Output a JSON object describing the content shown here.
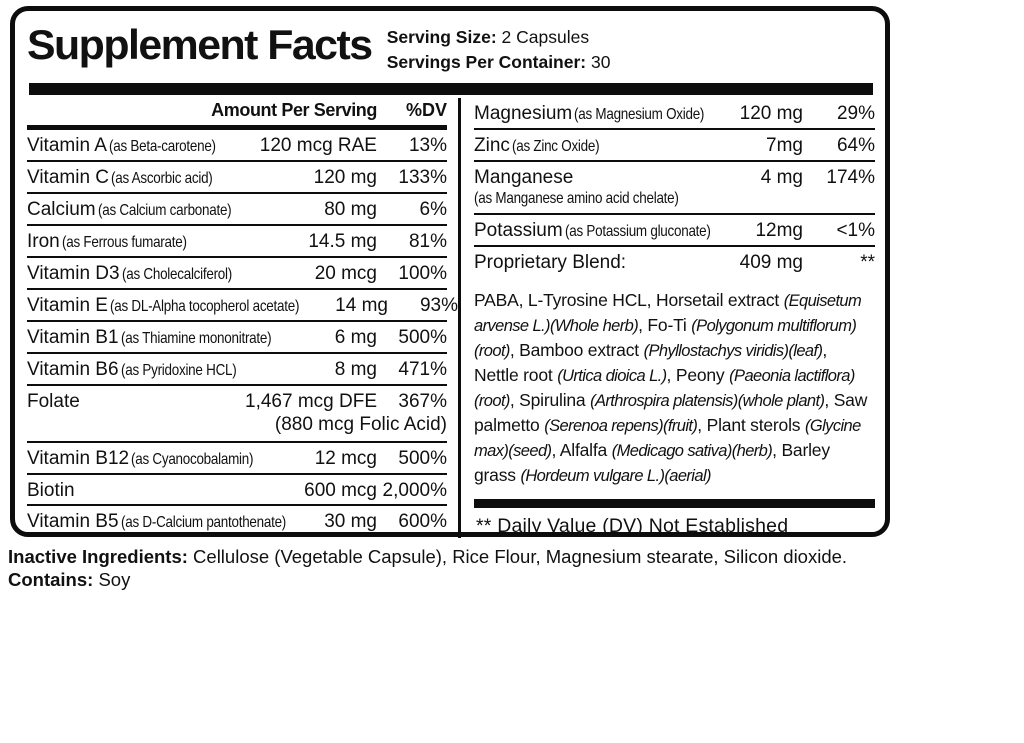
{
  "header": {
    "title": "Supplement Facts",
    "serving_size_label": "Serving Size:",
    "serving_size_value": " 2 Capsules",
    "servings_label": "Servings Per Container:",
    "servings_value": " 30"
  },
  "left_table": {
    "col_amount": "Amount Per Serving",
    "col_dv": "%DV",
    "rows": [
      {
        "name": "Vitamin A",
        "detail": "(as Beta-carotene)",
        "amount": "120 mcg RAE",
        "dv": "13%"
      },
      {
        "name": "Vitamin C",
        "detail": "(as Ascorbic acid)",
        "amount": "120 mg",
        "dv": "133%"
      },
      {
        "name": "Calcium",
        "detail": "(as Calcium carbonate)",
        "amount": "80 mg",
        "dv": "6%"
      },
      {
        "name": "Iron",
        "detail": "(as Ferrous fumarate)",
        "amount": "14.5 mg",
        "dv": "81%"
      },
      {
        "name": "Vitamin D3",
        "detail": "(as Cholecalciferol)",
        "amount": "20 mcg",
        "dv": "100%"
      },
      {
        "name": "Vitamin E",
        "detail": "(as DL-Alpha tocopherol acetate)",
        "amount": "14 mg",
        "dv": "93%"
      },
      {
        "name": "Vitamin B1",
        "detail": "(as Thiamine mononitrate)",
        "amount": "6 mg",
        "dv": "500%"
      },
      {
        "name": "Vitamin B6",
        "detail": "(as Pyridoxine HCL)",
        "amount": "8 mg",
        "dv": "471%"
      },
      {
        "name": "Folate",
        "detail": "",
        "amount": "1,467 mcg DFE",
        "dv": "367%",
        "note": "(880 mcg Folic Acid)"
      },
      {
        "name": "Vitamin B12",
        "detail": "(as Cyanocobalamin)",
        "amount": "12 mcg",
        "dv": "500%"
      },
      {
        "name": "Biotin",
        "detail": "",
        "amount": "600 mcg",
        "dv": "2,000%"
      },
      {
        "name": "Vitamin B5",
        "detail": "(as D-Calcium pantothenate)",
        "amount": "30 mg",
        "dv": "600%"
      }
    ]
  },
  "right_table": {
    "rows": [
      {
        "name": "Magnesium",
        "detail": "(as Magnesium Oxide)",
        "amount": "120 mg",
        "dv": "29%"
      },
      {
        "name": "Zinc",
        "detail": "(as Zinc Oxide)",
        "amount": "7mg",
        "dv": "64%"
      },
      {
        "name": "Manganese",
        "detail": "",
        "detail2": "(as Manganese amino acid chelate)",
        "amount": "4 mg",
        "dv": "174%"
      },
      {
        "name": "Potassium",
        "detail": "(as Potassium gluconate)",
        "amount": "12mg",
        "dv": "<1%"
      },
      {
        "name": "Proprietary Blend:",
        "detail": "",
        "amount": "409 mg",
        "dv": "**"
      }
    ],
    "blend_segments": [
      {
        "text": "PABA, L-Tyrosine HCL, Horsetail extract ",
        "italic": false
      },
      {
        "text": "(Equisetum arvense L.)(Whole herb)",
        "italic": true
      },
      {
        "text": ", Fo-Ti ",
        "italic": false
      },
      {
        "text": "(Polygonum multiflorum)(root)",
        "italic": true
      },
      {
        "text": ", Bamboo extract ",
        "italic": false
      },
      {
        "text": "(Phyllostachys viridis)(leaf)",
        "italic": true
      },
      {
        "text": ", Nettle root ",
        "italic": false
      },
      {
        "text": "(Urtica dioica L.)",
        "italic": true
      },
      {
        "text": ",  Peony ",
        "italic": false
      },
      {
        "text": "(Paeonia lactiflora)(root)",
        "italic": true
      },
      {
        "text": ", Spirulina ",
        "italic": false
      },
      {
        "text": "(Arthrospira platensis)(whole plant)",
        "italic": true
      },
      {
        "text": ", Saw palmetto ",
        "italic": false
      },
      {
        "text": "(Serenoa repens)(fruit)",
        "italic": true
      },
      {
        "text": ", Plant sterols ",
        "italic": false
      },
      {
        "text": "(Glycine max)(seed)",
        "italic": true
      },
      {
        "text": ", Alfalfa ",
        "italic": false
      },
      {
        "text": "(Medicago sativa)(herb)",
        "italic": true
      },
      {
        "text": ", Barley grass ",
        "italic": false
      },
      {
        "text": "(Hordeum vulgare L.)(aerial)",
        "italic": true
      }
    ],
    "footnote": "** Daily Value (DV) Not Established"
  },
  "footer": {
    "inactive_label": "Inactive Ingredients:",
    "inactive_value": " Cellulose (Vegetable Capsule), Rice Flour, Magnesium stearate, Silicon dioxide.",
    "contains_label": "Contains:",
    "contains_value": " Soy"
  },
  "colors": {
    "ink": "#0d0d0d",
    "background": "#ffffff"
  }
}
